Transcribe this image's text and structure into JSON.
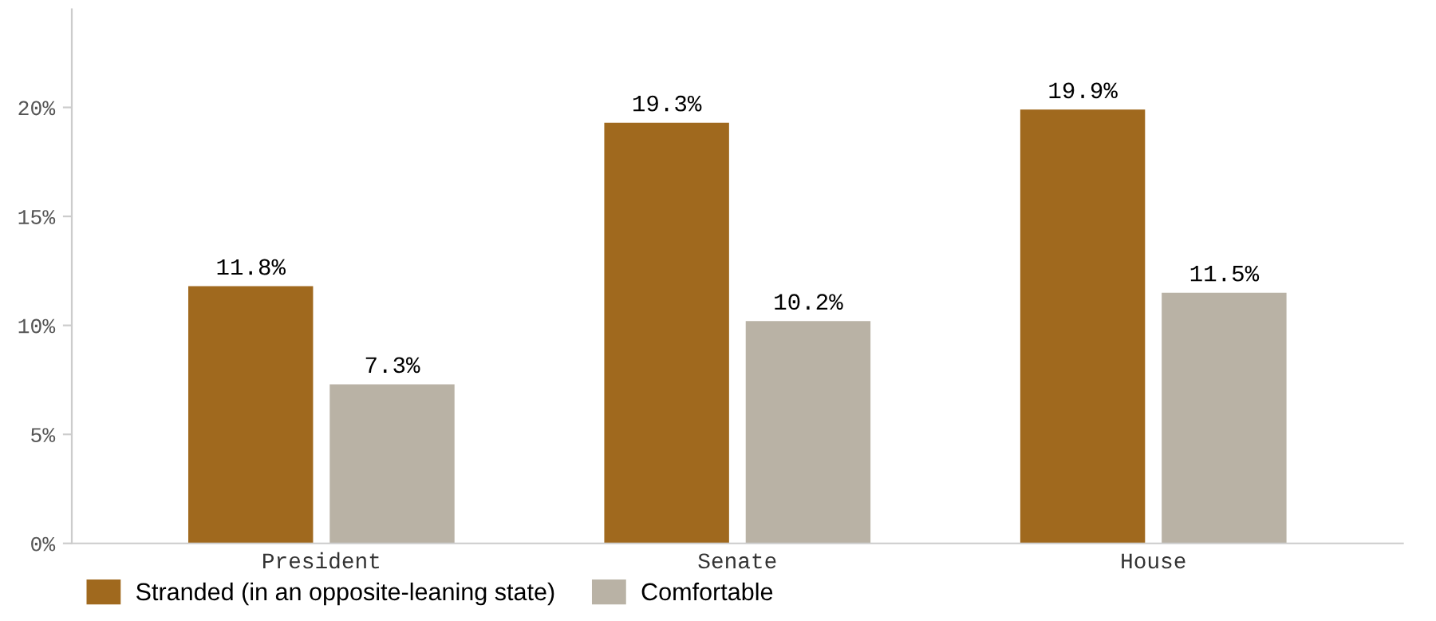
{
  "chart_data": {
    "type": "bar",
    "categories": [
      "President",
      "Senate",
      "House"
    ],
    "series": [
      {
        "name": "Stranded (in an opposite-leaning state)",
        "color": "#a0691e",
        "values": [
          11.8,
          19.3,
          19.9
        ],
        "value_labels": [
          "11.8%",
          "19.3%",
          "19.9%"
        ]
      },
      {
        "name": "Comfortable",
        "color": "#b9b2a5",
        "values": [
          7.3,
          10.2,
          11.5
        ],
        "value_labels": [
          "7.3%",
          "10.2%",
          "11.5%"
        ]
      }
    ],
    "ylim": [
      0,
      24.5
    ],
    "yticks": [
      {
        "value": 0,
        "label": "0%"
      },
      {
        "value": 5,
        "label": "5%"
      },
      {
        "value": 10,
        "label": "10%"
      },
      {
        "value": 15,
        "label": "15%"
      },
      {
        "value": 20,
        "label": "20%"
      }
    ],
    "grid": false,
    "legend": "bottom left"
  }
}
